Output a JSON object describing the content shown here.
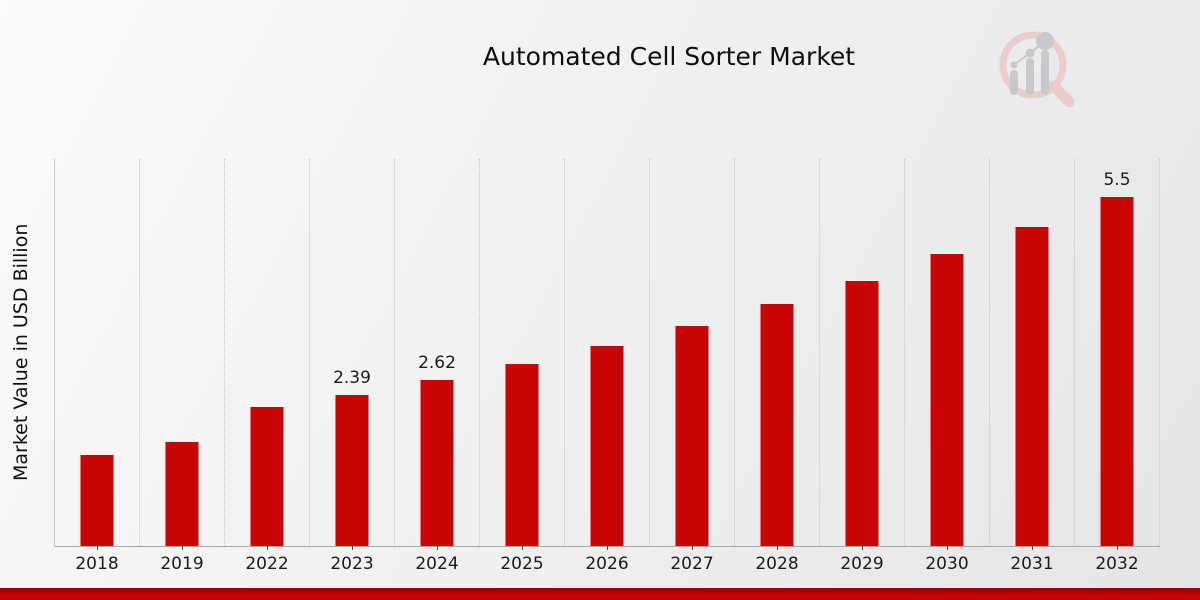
{
  "page": {
    "title": "Automated Cell Sorter Market"
  },
  "chart_data": {
    "type": "bar",
    "title": "Automated Cell Sorter Market",
    "xlabel": "",
    "ylabel": "Market Value in USD Billion",
    "categories": [
      "2018",
      "2019",
      "2022",
      "2023",
      "2024",
      "2025",
      "2026",
      "2027",
      "2028",
      "2029",
      "2030",
      "2031",
      "2032"
    ],
    "values": [
      1.45,
      1.65,
      2.2,
      2.39,
      2.62,
      2.88,
      3.16,
      3.47,
      3.81,
      4.18,
      4.6,
      5.03,
      5.5
    ],
    "bar_labels": [
      "",
      "",
      "",
      "2.39",
      "2.62",
      "",
      "",
      "",
      "",
      "",
      "",
      "",
      "5.5"
    ],
    "ylim": [
      0,
      6.08
    ],
    "grid": "vertical dotted lines between categories",
    "legend": "none",
    "bar_color": "#c90606"
  },
  "colors": {
    "bar": "#c90606",
    "footer": "#c40404",
    "footer_dark": "#8d0000",
    "grid": "#c3c3c3",
    "axis": "#a8a8a8",
    "text": "#1b1b1b",
    "logo_ring": "#ecc8c8",
    "logo_gray": "#c2c3c7"
  },
  "icons": {
    "logo": "magnifier-bar-chart-watermark-icon"
  }
}
